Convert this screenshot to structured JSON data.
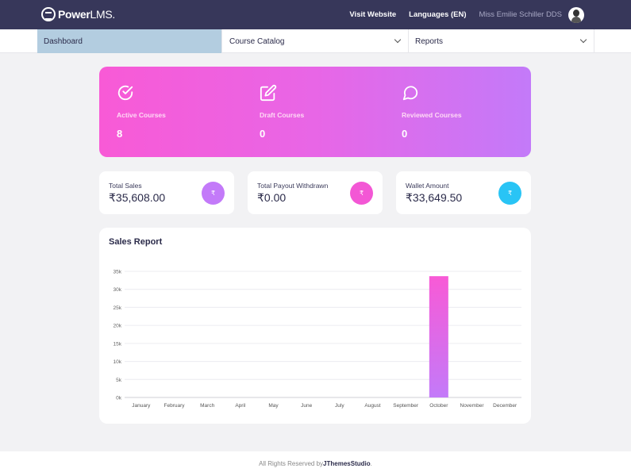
{
  "header": {
    "brand": "Power",
    "brand_suffix": "LMS.",
    "visit_website": "Visit Website",
    "languages": "Languages (EN)",
    "user_name": "Miss Emilie Schiller DDS"
  },
  "menu": {
    "dashboard": "Dashboard",
    "course_catalog": "Course Catalog",
    "reports": "Reports"
  },
  "stats": {
    "active_label": "Active Courses",
    "active_value": "8",
    "draft_label": "Draft Courses",
    "draft_value": "0",
    "reviewed_label": "Reviewed Courses",
    "reviewed_value": "0"
  },
  "cards": {
    "sales_label": "Total Sales",
    "sales_value": "₹35,608.00",
    "payout_label": "Total Payout Withdrawn",
    "payout_value": "₹0.00",
    "wallet_label": "Wallet Amount",
    "wallet_value": "₹33,649.50",
    "currency_symbol": "₹"
  },
  "report": {
    "title": "Sales Report"
  },
  "chart_data": {
    "type": "bar",
    "title": "",
    "xlabel": "",
    "ylabel": "",
    "categories": [
      "January",
      "February",
      "March",
      "April",
      "May",
      "June",
      "July",
      "August",
      "September",
      "October",
      "November",
      "December"
    ],
    "values": [
      0,
      0,
      0,
      0,
      0,
      0,
      0,
      0,
      0,
      33649.5,
      0,
      0
    ],
    "ylim": [
      0,
      35000
    ],
    "yticks": [
      "0k",
      "5k",
      "10k",
      "15k",
      "20k",
      "25k",
      "30k",
      "35k"
    ],
    "grid": true,
    "bar_gradient": [
      "#f85ad6",
      "#c37af9"
    ]
  },
  "footer": {
    "prefix": "All Rights Reserved by ",
    "company": "JThemesStudio",
    "suffix": "."
  },
  "colors": {
    "topbar": "#37375a",
    "accent_pink": "#f85ad6",
    "accent_purple": "#c37af9",
    "accent_cyan": "#29c4f5",
    "active_menu": "#b3cde0"
  }
}
